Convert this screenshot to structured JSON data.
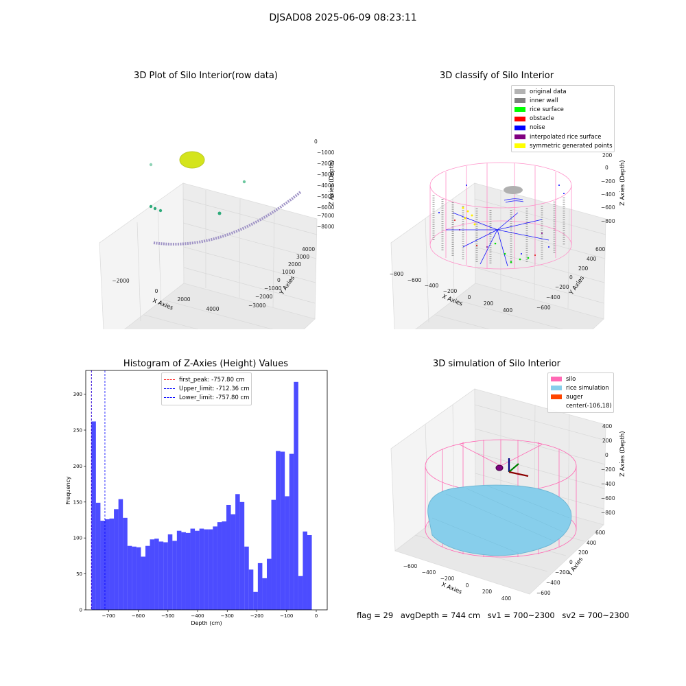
{
  "figure": {
    "suptitle": "DJSAD08 2025-06-09 08:23:11"
  },
  "chart_data": [
    {
      "type": "scatter",
      "title": "3D Plot of Silo Interior(row data)",
      "xlabel": "X Axies",
      "ylabel": "Y Axies",
      "zlabel": "Z Axies (Depth)",
      "x_ticks": [
        "−2000",
        "0",
        "2000",
        "4000"
      ],
      "y_ticks": [
        "4000",
        "3000",
        "2000",
        "1000",
        "0",
        "−1000",
        "−2000",
        "−3000"
      ],
      "z_ticks": [
        "0",
        "−1000",
        "−2000",
        "−3000",
        "−4000",
        "−5000",
        "−6000",
        "−7000",
        "−8000"
      ],
      "colors": {
        "cluster": "#d4e41c",
        "curve": "#9f93c6",
        "outlier": "#2daa7a"
      }
    },
    {
      "type": "scatter",
      "title": "3D classify of Silo Interior",
      "xlabel": "X Axies",
      "ylabel": "Y Axies",
      "zlabel": "Z Axies (Depth)",
      "x_ticks": [
        "−800",
        "−600",
        "−400",
        "−200",
        "0",
        "200",
        "400"
      ],
      "y_ticks": [
        "600",
        "400",
        "200",
        "0",
        "−200",
        "−400",
        "−600"
      ],
      "z_ticks": [
        "200",
        "0",
        "−200",
        "−400",
        "−600",
        "−800"
      ],
      "legend": [
        {
          "label": "original data",
          "color": "#b3b3b3"
        },
        {
          "label": "inner wall",
          "color": "#808080"
        },
        {
          "label": "rice surface",
          "color": "#00ff00"
        },
        {
          "label": "obstacle",
          "color": "#ff0000"
        },
        {
          "label": "noise",
          "color": "#0000ff"
        },
        {
          "label": "interpolated rice surface",
          "color": "#800080"
        },
        {
          "label": "symmetric generated points",
          "color": "#ffff00"
        }
      ]
    },
    {
      "type": "bar",
      "title": "Histogram of Z-Axies (Height) Values",
      "xlabel": "Depth (cm)",
      "ylabel": "Frequency",
      "xlim": [
        -777,
        37
      ],
      "ylim": [
        0,
        333
      ],
      "x_ticks": [
        -700,
        -600,
        -500,
        -400,
        -300,
        -200,
        -100,
        0
      ],
      "y_ticks": [
        0,
        50,
        100,
        150,
        200,
        250,
        300
      ],
      "bin_start": -757.8,
      "bin_width": 15.16,
      "values": [
        262,
        149,
        124,
        126,
        127,
        140,
        154,
        128,
        89,
        88,
        87,
        74,
        89,
        98,
        99,
        95,
        94,
        105,
        96,
        110,
        108,
        107,
        113,
        110,
        113,
        112,
        112,
        116,
        122,
        123,
        146,
        133,
        161,
        150,
        88,
        56,
        25,
        65,
        44,
        71,
        153,
        221,
        220,
        158,
        217,
        317,
        47,
        109,
        104
      ],
      "bar_color": "#0000ff",
      "vlines": [
        {
          "label": "first_peak: -757.80 cm",
          "value": -757.8,
          "color": "#ff0000"
        },
        {
          "label": "Upper_limit: -712.36 cm",
          "value": -712.36,
          "color": "#0000ff"
        },
        {
          "label": "Lower_limit: -757.80 cm",
          "value": -757.8,
          "color": "#0000ff"
        }
      ]
    },
    {
      "type": "scatter",
      "title": "3D simulation of Silo Interior",
      "xlabel": "X Axies",
      "ylabel": "Y Axies",
      "zlabel": "Z Axies (Depth)",
      "x_ticks": [
        "−600",
        "−400",
        "−200",
        "0",
        "200",
        "400"
      ],
      "y_ticks": [
        "600",
        "400",
        "200",
        "0",
        "−200",
        "−400",
        "−600"
      ],
      "z_ticks": [
        "400",
        "200",
        "0",
        "−200",
        "−400",
        "−600",
        "−800"
      ],
      "legend": [
        {
          "label": "silo",
          "color": "#ff69b4"
        },
        {
          "label": "rice simulation",
          "color": "#87ceeb"
        },
        {
          "label": "auger",
          "color": "#ff4500"
        },
        {
          "label": "center(-106,18)",
          "color": ""
        }
      ]
    }
  ],
  "footer": {
    "flag": "flag = 29",
    "avg_depth": "avgDepth = 744 cm",
    "sv1": "sv1 = 700~2300",
    "sv2": "sv2 = 700~2300"
  }
}
